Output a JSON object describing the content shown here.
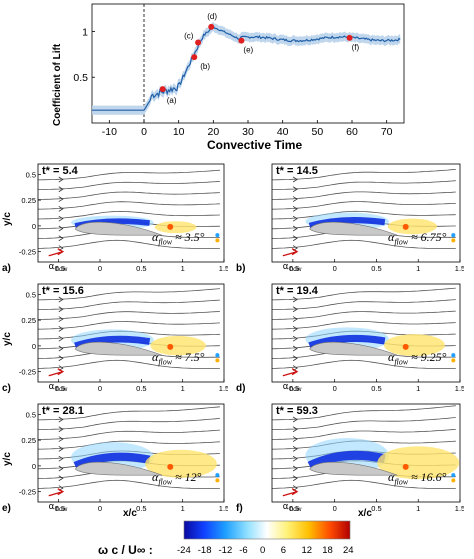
{
  "figure": {
    "lift": {
      "ylabel": "Coefficient of Lift",
      "xlabel": "Convective Time",
      "xticks": [
        "-10",
        "0",
        "10",
        "20",
        "30",
        "40",
        "50",
        "60",
        "70"
      ],
      "yticks": [
        "0.5",
        "1"
      ],
      "xrange": [
        -15,
        75
      ],
      "yrange": [
        0,
        1.3
      ],
      "markers": [
        {
          "label": "(a)",
          "t": 5.4,
          "cl": 0.37
        },
        {
          "label": "(b)",
          "t": 14.5,
          "cl": 0.72
        },
        {
          "label": "(c)",
          "t": 15.6,
          "cl": 0.88
        },
        {
          "label": "(d)",
          "t": 19.4,
          "cl": 1.05
        },
        {
          "label": "(e)",
          "t": 28.1,
          "cl": 0.9
        },
        {
          "label": "(f)",
          "t": 59.3,
          "cl": 0.93
        }
      ]
    },
    "panels": [
      {
        "id": "a",
        "letter": "a)",
        "tstar": "t* =  5.4",
        "alpha_text": "≈ 3.5°",
        "wake": 0.15
      },
      {
        "id": "b",
        "letter": "b)",
        "tstar": "t* = 14.5",
        "alpha_text": "≈ 6.75°",
        "wake": 0.3
      },
      {
        "id": "c",
        "letter": "c)",
        "tstar": "t* = 15.6",
        "alpha_text": "≈ 7.5°",
        "wake": 0.45
      },
      {
        "id": "d",
        "letter": "d)",
        "tstar": "t* = 19.4",
        "alpha_text": "≈ 9.25°",
        "wake": 0.55
      },
      {
        "id": "e",
        "letter": "e)",
        "tstar": "t* = 28.1",
        "alpha_text": "≈ 12°",
        "wake": 0.8
      },
      {
        "id": "f",
        "letter": "f)",
        "tstar": "t* = 59.3",
        "alpha_text": "≈ 16.6°",
        "wake": 1.0
      }
    ],
    "alpha_symbol": "α",
    "alpha_sub": "flow",
    "axis": {
      "ylabel": "y/c",
      "xlabel": "x/c",
      "xticks": [
        "-0.5",
        "0",
        "0.5",
        "1",
        "1.5"
      ],
      "yticks": [
        "0.5",
        "0.25",
        "0",
        "-0.25"
      ]
    },
    "colorbar": {
      "title": "ω c / U∞ :",
      "ticks": [
        "-24",
        "-18",
        "-12",
        "-6",
        "0",
        "6",
        "12",
        "18",
        "24"
      ]
    },
    "colors": {
      "curve": "#1f5fa8",
      "band": "#b9d2ea",
      "marker": "#e02020",
      "arrow": "#cc1111"
    }
  }
}
